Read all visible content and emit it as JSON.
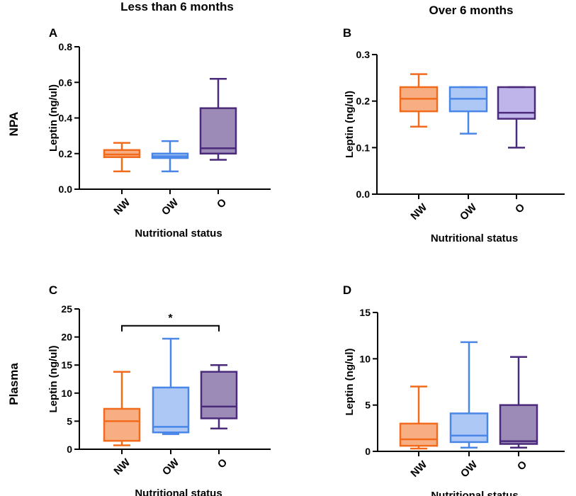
{
  "figure": {
    "column_titles": [
      "Less than 6 months",
      "Over 6 months"
    ],
    "row_titles": [
      "NPA",
      "Plasma"
    ]
  },
  "colors": {
    "NW": "#f26b1d",
    "OW": "#4a86e8",
    "O": "#4b2a7b",
    "O_fill_panel_B": "#6a4fd0",
    "axis": "#000000"
  },
  "chart_data": [
    {
      "panel": "A",
      "type": "box",
      "title": "Less than 6 months",
      "row": "NPA",
      "xlabel": "Nutritional status",
      "ylabel": "Leptin (ng/ul)",
      "ylim": [
        0,
        0.8
      ],
      "yticks": [
        0,
        0.2,
        0.4,
        0.6,
        0.8
      ],
      "ytick_labels": [
        "0.0",
        "0.2",
        "0.4",
        "0.6",
        "0.8"
      ],
      "categories": [
        "NW",
        "OW",
        "O"
      ],
      "boxes": [
        {
          "category": "NW",
          "min": 0.1,
          "q1": 0.18,
          "median": 0.195,
          "q3": 0.22,
          "max": 0.26
        },
        {
          "category": "OW",
          "min": 0.1,
          "q1": 0.175,
          "median": 0.185,
          "q3": 0.2,
          "max": 0.27
        },
        {
          "category": "O",
          "min": 0.165,
          "q1": 0.2,
          "median": 0.23,
          "q3": 0.455,
          "max": 0.62
        }
      ],
      "significance": null
    },
    {
      "panel": "B",
      "type": "box",
      "title": "Over 6 months",
      "row": "NPA",
      "xlabel": "Nutritional status",
      "ylabel": "Leptin (ng/ul)",
      "ylim": [
        0,
        0.3
      ],
      "yticks": [
        0,
        0.1,
        0.2,
        0.3
      ],
      "ytick_labels": [
        "0.0",
        "0.1",
        "0.2",
        "0.3"
      ],
      "categories": [
        "NW",
        "OW",
        "O"
      ],
      "boxes": [
        {
          "category": "NW",
          "min": 0.145,
          "q1": 0.178,
          "median": 0.205,
          "q3": 0.23,
          "max": 0.258
        },
        {
          "category": "OW",
          "min": 0.13,
          "q1": 0.178,
          "median": 0.205,
          "q3": 0.23,
          "max": 0.23
        },
        {
          "category": "O",
          "min": 0.1,
          "q1": 0.162,
          "median": 0.175,
          "q3": 0.23,
          "max": 0.23
        }
      ],
      "significance": null
    },
    {
      "panel": "C",
      "type": "box",
      "title": "Less than 6 months",
      "row": "Plasma",
      "xlabel": "Nutritional status",
      "ylabel": "Leptin (ng/ul)",
      "ylim": [
        0,
        25
      ],
      "yticks": [
        0,
        5,
        10,
        15,
        20,
        25
      ],
      "ytick_labels": [
        "0",
        "5",
        "10",
        "15",
        "20",
        "25"
      ],
      "categories": [
        "NW",
        "OW",
        "O"
      ],
      "boxes": [
        {
          "category": "NW",
          "min": 0.7,
          "q1": 1.5,
          "median": 5.0,
          "q3": 7.2,
          "max": 13.8
        },
        {
          "category": "OW",
          "min": 2.7,
          "q1": 3.0,
          "median": 4.0,
          "q3": 11.0,
          "max": 19.7
        },
        {
          "category": "O",
          "min": 3.7,
          "q1": 5.5,
          "median": 7.6,
          "q3": 13.8,
          "max": 15.0
        }
      ],
      "significance": {
        "from": "NW",
        "to": "O",
        "label": "*",
        "y": 22
      }
    },
    {
      "panel": "D",
      "type": "box",
      "title": "Over 6 months",
      "row": "Plasma",
      "xlabel": "Nutritional status",
      "ylabel": "Leptin (ng/ul)",
      "ylim": [
        0,
        15
      ],
      "yticks": [
        0,
        5,
        10,
        15
      ],
      "ytick_labels": [
        "0",
        "5",
        "10",
        "15"
      ],
      "categories": [
        "NW",
        "OW",
        "O"
      ],
      "boxes": [
        {
          "category": "NW",
          "min": 0.3,
          "q1": 0.6,
          "median": 1.3,
          "q3": 3.0,
          "max": 7.0
        },
        {
          "category": "OW",
          "min": 0.4,
          "q1": 1.0,
          "median": 1.7,
          "q3": 4.1,
          "max": 11.8
        },
        {
          "category": "O",
          "min": 0.4,
          "q1": 0.8,
          "median": 1.1,
          "q3": 5.0,
          "max": 10.2
        }
      ],
      "significance": null
    }
  ]
}
